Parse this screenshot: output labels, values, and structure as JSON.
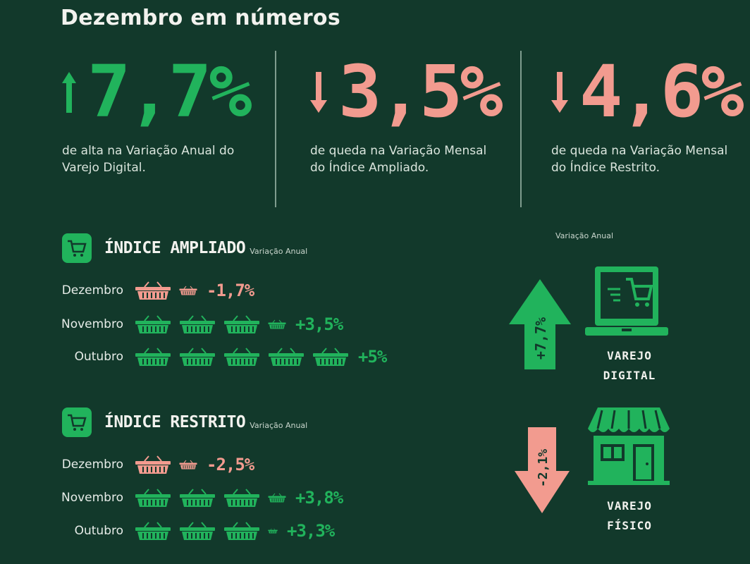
{
  "title": "Dezembro em números",
  "stats": [
    {
      "value": "7,7%",
      "direction": "up",
      "desc": "de alta na Variação Anual do Varejo Digital."
    },
    {
      "value": "3,5%",
      "direction": "down",
      "desc": "de queda na Variação Mensal do Índice Ampliado."
    },
    {
      "value": "4,6%",
      "direction": "down",
      "desc": "de queda na Variação Mensal do Índice Restrito."
    }
  ],
  "indice_ampliado": {
    "title": "ÍNDICE AMPLIADO",
    "subtitle": "Variação Anual",
    "rows": [
      {
        "label": "Dezembro",
        "value": "-1,7%"
      },
      {
        "label": "Novembro",
        "value": "+3,5%"
      },
      {
        "label": "Outubro",
        "value": "+5%"
      }
    ]
  },
  "indice_restrito": {
    "title": "ÍNDICE RESTRITO",
    "subtitle": "Variação Anual",
    "rows": [
      {
        "label": "Dezembro",
        "value": "-2,5%"
      },
      {
        "label": "Novembro",
        "value": "+3,8%"
      },
      {
        "label": "Outubro",
        "value": "+3,3%"
      }
    ]
  },
  "right_panel": {
    "caption": "Variação Anual",
    "digital": {
      "value": "+7,7%",
      "label_line1": "VAREJO",
      "label_line2": "DIGITAL"
    },
    "fisico": {
      "value": "-2,1%",
      "label_line1": "VAREJO",
      "label_line2": "FÍSICO"
    }
  },
  "colors": {
    "background": "#12392b",
    "positive": "#21b35c",
    "negative": "#f29b8f"
  },
  "icons": [
    "arrow-up-icon",
    "arrow-down-icon",
    "shopping-cart-icon",
    "basket-icon",
    "laptop-cart-icon",
    "storefront-icon"
  ]
}
